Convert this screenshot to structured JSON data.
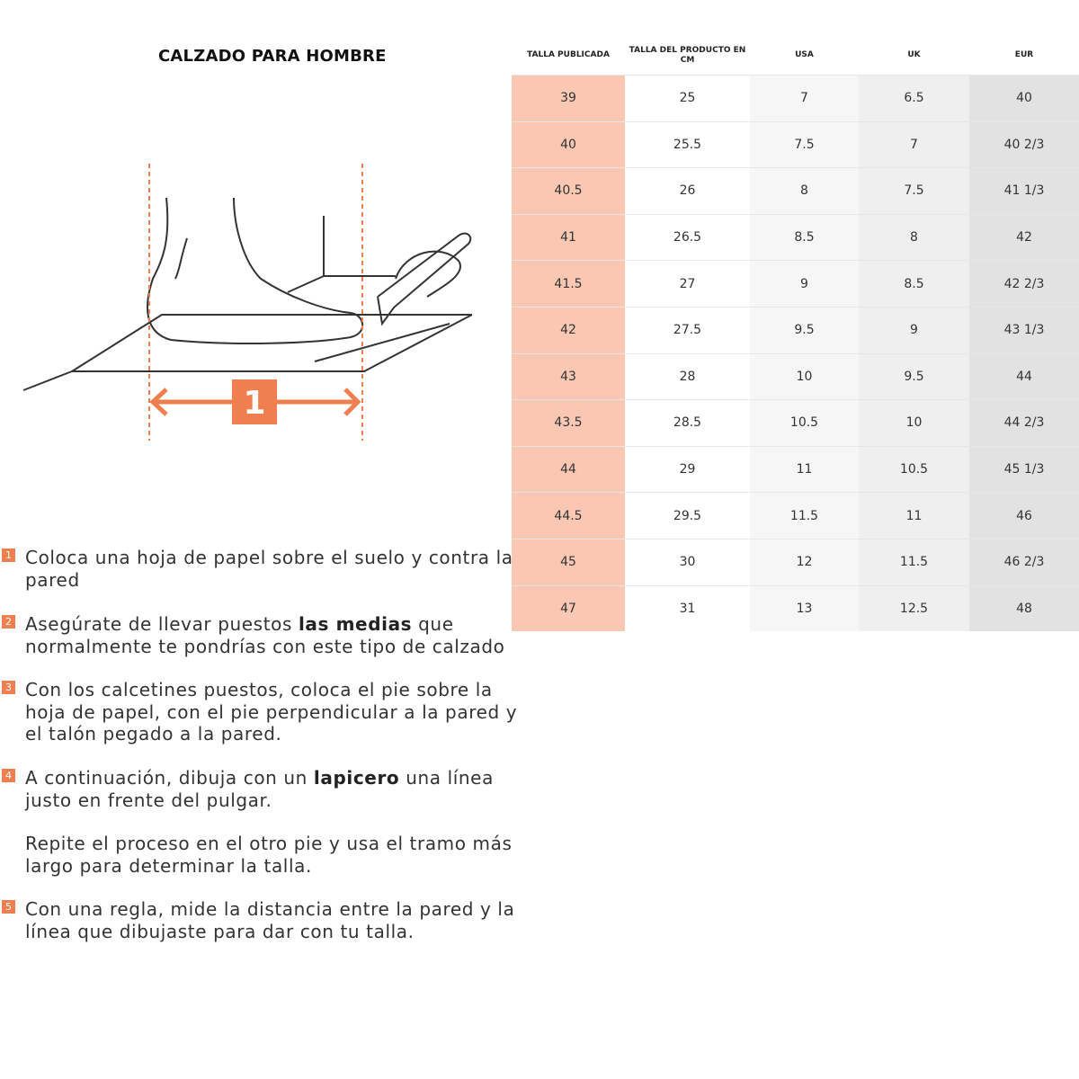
{
  "title": "CALZADO PARA HOMBRE",
  "illustration": {
    "step_label": "1",
    "accent_color": "#f07f4f"
  },
  "table": {
    "headers": [
      "TALLA PUBLICADA",
      "TALLA DEL PRODUCTO EN CM",
      "USA",
      "UK",
      "EUR"
    ],
    "rows": [
      [
        "39",
        "25",
        "7",
        "6.5",
        "40"
      ],
      [
        "40",
        "25.5",
        "7.5",
        "7",
        "40 2/3"
      ],
      [
        "40.5",
        "26",
        "8",
        "7.5",
        "41 1/3"
      ],
      [
        "41",
        "26.5",
        "8.5",
        "8",
        "42"
      ],
      [
        "41.5",
        "27",
        "9",
        "8.5",
        "42 2/3"
      ],
      [
        "42",
        "27.5",
        "9.5",
        "9",
        "43 1/3"
      ],
      [
        "43",
        "28",
        "10",
        "9.5",
        "44"
      ],
      [
        "43.5",
        "28.5",
        "10.5",
        "10",
        "44 2/3"
      ],
      [
        "44",
        "29",
        "11",
        "10.5",
        "45 1/3"
      ],
      [
        "44.5",
        "29.5",
        "11.5",
        "11",
        "46"
      ],
      [
        "45",
        "30",
        "12",
        "11.5",
        "46 2/3"
      ],
      [
        "47",
        "31",
        "13",
        "12.5",
        "48"
      ]
    ],
    "highlight_color": "#fac8b2"
  },
  "steps": [
    {
      "num": "1",
      "before": "Coloca una hoja de papel sobre el suelo y contra la pared",
      "bold": "",
      "after": ""
    },
    {
      "num": "2",
      "before": "Asegúrate de llevar puestos ",
      "bold": "las medias",
      "after": " que normalmente te pondrías con este tipo de calzado"
    },
    {
      "num": "3",
      "before": "Con los calcetines puestos, coloca el pie sobre la hoja de papel, con el pie perpendicular a la pared y el talón pegado a la pared.",
      "bold": "",
      "after": ""
    },
    {
      "num": "4",
      "before": "A continuación, dibuja con un ",
      "bold": "lapicero",
      "after": "  una línea justo en frente del pulgar."
    },
    {
      "num": "",
      "before": "Repite el proceso en el otro pie y usa el tramo más largo para determinar la talla.",
      "bold": "",
      "after": ""
    },
    {
      "num": "5",
      "before": "Con una regla, mide la distancia entre la pared y la línea que dibujaste para dar con tu talla.",
      "bold": "",
      "after": ""
    }
  ]
}
